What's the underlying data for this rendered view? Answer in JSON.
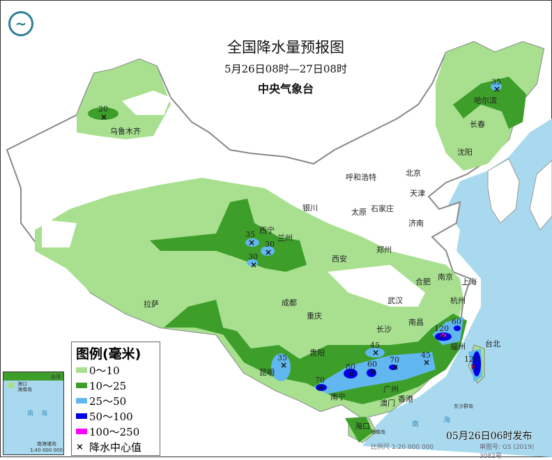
{
  "header": {
    "title": "全国降水量预报图",
    "period": "5月26日08时—27日08时",
    "issuer": "中央气象台",
    "logo": "中央气象台 logo"
  },
  "legend": {
    "title": "图例(毫米)",
    "items": [
      {
        "label": "0～10",
        "color": "#a8e090"
      },
      {
        "label": "10～25",
        "color": "#3e9e2a"
      },
      {
        "label": "25～50",
        "color": "#61b8f0"
      },
      {
        "label": "50～100",
        "color": "#0000e6"
      },
      {
        "label": "100～250",
        "color": "#ff00ff"
      }
    ],
    "center_label": "降水中心值",
    "center_symbol": "×"
  },
  "inset": {
    "labels": [
      "海口",
      "海南岛",
      "台湾",
      "南",
      "海",
      "南海诸岛"
    ],
    "scale": "1:40 000 000"
  },
  "footer": {
    "issued": "05月26日06时发布",
    "scale": "比例尺 1:20 000 000",
    "review": "审图号: GS (2019) 3082号"
  },
  "map_labels": {
    "sea": [
      "南",
      "海"
    ],
    "islands": [
      "东沙群岛",
      "海南岛"
    ]
  },
  "cities": [
    "乌鲁木齐",
    "哈尔滨",
    "长春",
    "沈阳",
    "北京",
    "天津",
    "呼和浩特",
    "石家庄",
    "太原",
    "银川",
    "西宁",
    "兰州",
    "济南",
    "郑州",
    "西安",
    "合肥",
    "南京",
    "上海",
    "拉萨",
    "成都",
    "武汉",
    "杭州",
    "重庆",
    "长沙",
    "南昌",
    "福州",
    "台北",
    "贵阳",
    "昆明",
    "南宁",
    "广州",
    "澳门",
    "香港",
    "海口"
  ],
  "centers": [
    "20",
    "35",
    "35",
    "30",
    "30",
    "35",
    "70",
    "80",
    "60",
    "70",
    "45",
    "45",
    "120",
    "60",
    "120"
  ],
  "colors": {
    "sea": "#a9d9ee",
    "land_bg": "#ffffff",
    "border": "#888888"
  }
}
